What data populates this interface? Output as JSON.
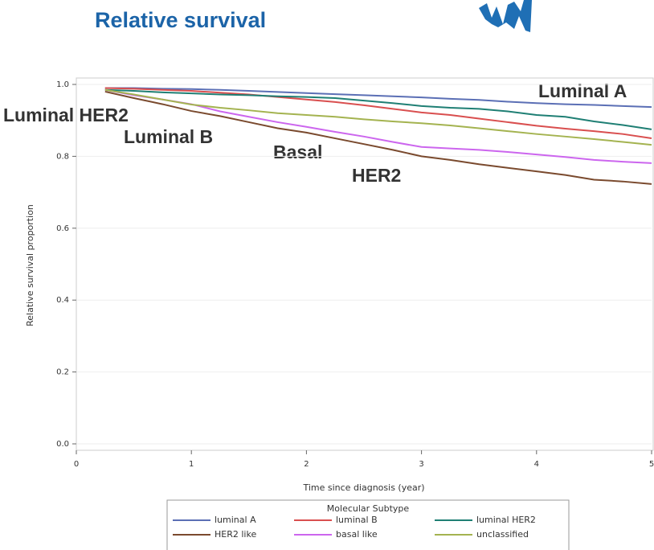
{
  "chart_data": {
    "type": "line",
    "title": "Relative survival",
    "xlabel": "Time since diagnosis (year)",
    "ylabel": "Relative survival proportion",
    "annotations": [
      "Luminal A",
      "Luminal HER2",
      "Luminal B",
      "Basal",
      "HER2"
    ],
    "legend_title": "Molecular Subtype",
    "x": [
      0.25,
      0.5,
      0.75,
      1,
      1.25,
      1.5,
      1.75,
      2,
      2.25,
      2.5,
      2.75,
      3,
      3.25,
      3.5,
      3.75,
      4,
      4.25,
      4.5,
      4.75,
      5
    ],
    "series": [
      {
        "name": "luminal A",
        "color": "#5b6fb5",
        "values": [
          0.99,
          0.99,
          0.988,
          0.987,
          0.985,
          0.982,
          0.979,
          0.976,
          0.973,
          0.97,
          0.967,
          0.964,
          0.96,
          0.957,
          0.952,
          0.948,
          0.945,
          0.943,
          0.94,
          0.937
        ]
      },
      {
        "name": "luminal B",
        "color": "#d94f4f",
        "values": [
          0.99,
          0.988,
          0.985,
          0.982,
          0.977,
          0.972,
          0.965,
          0.958,
          0.951,
          0.942,
          0.932,
          0.922,
          0.915,
          0.905,
          0.895,
          0.885,
          0.877,
          0.87,
          0.862,
          0.85
        ]
      },
      {
        "name": "luminal HER2",
        "color": "#1f7f74",
        "values": [
          0.985,
          0.982,
          0.978,
          0.975,
          0.972,
          0.97,
          0.967,
          0.965,
          0.962,
          0.955,
          0.948,
          0.94,
          0.935,
          0.932,
          0.925,
          0.915,
          0.91,
          0.897,
          0.887,
          0.875
        ]
      },
      {
        "name": "HER2 like",
        "color": "#7a4a2e",
        "values": [
          0.98,
          0.962,
          0.945,
          0.926,
          0.912,
          0.895,
          0.878,
          0.866,
          0.85,
          0.834,
          0.818,
          0.8,
          0.79,
          0.778,
          0.768,
          0.758,
          0.748,
          0.735,
          0.73,
          0.723
        ]
      },
      {
        "name": "basal like",
        "color": "#cc66ee",
        "values": [
          0.985,
          0.97,
          0.958,
          0.945,
          0.925,
          0.91,
          0.895,
          0.882,
          0.868,
          0.855,
          0.84,
          0.826,
          0.822,
          0.818,
          0.812,
          0.805,
          0.798,
          0.79,
          0.785,
          0.781
        ]
      },
      {
        "name": "unclassified",
        "color": "#a4b350",
        "values": [
          0.985,
          0.972,
          0.958,
          0.944,
          0.935,
          0.928,
          0.92,
          0.915,
          0.91,
          0.903,
          0.897,
          0.892,
          0.886,
          0.878,
          0.87,
          0.862,
          0.855,
          0.848,
          0.84,
          0.832
        ]
      }
    ],
    "xlim": [
      0,
      5
    ],
    "xticks": [
      0,
      1,
      2,
      3,
      4,
      5
    ],
    "ylim": [
      0,
      1
    ],
    "yticks": [
      {
        "value": 0,
        "label": "0.0"
      },
      0.2,
      0.4,
      0.6,
      0.8,
      {
        "value": 1,
        "label": "1.0"
      }
    ],
    "grid": true,
    "legend": "bottom"
  }
}
